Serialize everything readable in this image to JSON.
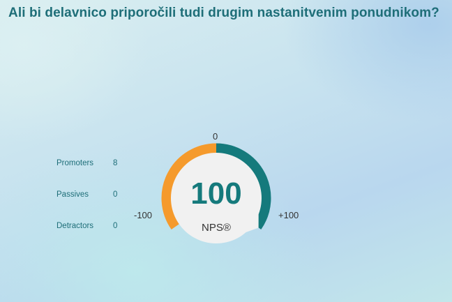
{
  "title": "Ali bi delavnico priporočili tudi drugim nastanitvenim ponudnikom?",
  "stats": [
    {
      "label": "Promoters",
      "value": "8"
    },
    {
      "label": "Passives",
      "value": "0"
    },
    {
      "label": "Detractors",
      "value": "0"
    }
  ],
  "gauge": {
    "value": "100",
    "label": "NPS®",
    "tick_min": "-100",
    "tick_mid": "0",
    "tick_max": "+100"
  },
  "colors": {
    "title": "#1e6e78",
    "negative_arc": "#f59a2c",
    "positive_arc": "#157a7c",
    "center": "#f1f1f1"
  },
  "chart_data": {
    "type": "gauge",
    "title": "",
    "range": [
      -100,
      100
    ],
    "value": 100,
    "segments": [
      {
        "from": -100,
        "to": 0,
        "color": "#f59a2c"
      },
      {
        "from": 0,
        "to": 100,
        "color": "#157a7c"
      }
    ],
    "categories": [
      "Promoters",
      "Passives",
      "Detractors"
    ],
    "values": [
      8,
      0,
      0
    ]
  }
}
